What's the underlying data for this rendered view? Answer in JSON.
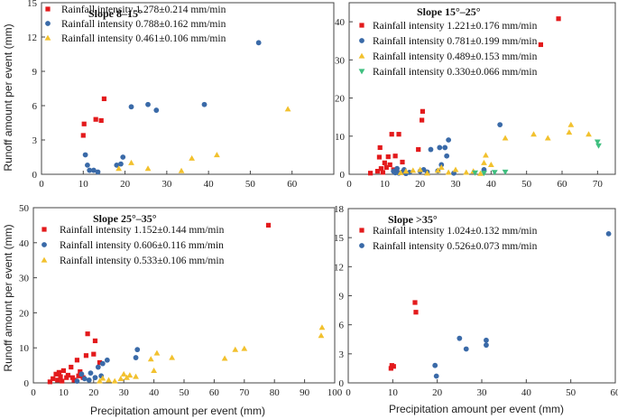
{
  "figure": {
    "ylabel": "Runoff amount per event (mm)",
    "xlabel": "Precipitation amount per event (mm)"
  },
  "colors": {
    "red": "#e31a1c",
    "blue": "#3a6aa8",
    "yellow": "#f2c12e",
    "green": "#3fbf7f"
  },
  "chart_data": [
    {
      "type": "scatter",
      "title": "Slope 8–15°",
      "xlabel": "",
      "ylabel": "Runoff amount per event (mm)",
      "xlim": [
        0,
        70
      ],
      "ylim": [
        0,
        15
      ],
      "xticks": [
        "0",
        "10",
        "20",
        "30",
        "40",
        "50",
        "60"
      ],
      "yticks": [
        "0",
        "3",
        "6",
        "9",
        "12",
        "15"
      ],
      "series": [
        {
          "name": "Rainfall intensity  1.278±0.214 mm/min",
          "color": "red",
          "marker": "square",
          "points": [
            [
              10,
              3.4
            ],
            [
              10.2,
              4.4
            ],
            [
              13,
              4.8
            ],
            [
              14.3,
              4.7
            ],
            [
              15,
              6.6
            ]
          ]
        },
        {
          "name": "Rainfall intensity  0.788±0.162 mm/min",
          "color": "blue",
          "marker": "circle",
          "points": [
            [
              10.5,
              1.7
            ],
            [
              11,
              0.8
            ],
            [
              11.5,
              0.35
            ],
            [
              12.5,
              0.35
            ],
            [
              13.5,
              0.2
            ],
            [
              18,
              0.8
            ],
            [
              19,
              0.9
            ],
            [
              19.5,
              1.5
            ],
            [
              21.5,
              5.9
            ],
            [
              25.5,
              6.1
            ],
            [
              27.5,
              5.6
            ],
            [
              39,
              6.1
            ],
            [
              52,
              11.5
            ]
          ]
        },
        {
          "name": "Rainfall intensity  0.461±0.106 mm/min",
          "color": "yellow",
          "marker": "triangle",
          "points": [
            [
              18.5,
              0.5
            ],
            [
              21.5,
              1.0
            ],
            [
              25.5,
              0.5
            ],
            [
              33.5,
              0.3
            ],
            [
              36,
              1.4
            ],
            [
              42,
              1.7
            ],
            [
              59,
              5.7
            ]
          ]
        }
      ]
    },
    {
      "type": "scatter",
      "title": "Slope 15°–25°",
      "xlabel": "",
      "ylabel": "",
      "xlim": [
        0,
        75
      ],
      "ylim": [
        0,
        45
      ],
      "xticks": [
        "0",
        "10",
        "20",
        "30",
        "40",
        "50",
        "60",
        "70"
      ],
      "yticks": [
        "0",
        "10",
        "20",
        "30",
        "40"
      ],
      "series": [
        {
          "name": "Rainfall intensity  1.221±0.176 mm/min",
          "color": "red",
          "marker": "square",
          "points": [
            [
              6,
              0.3
            ],
            [
              8,
              0.8
            ],
            [
              8.5,
              4.5
            ],
            [
              8.7,
              7
            ],
            [
              9,
              1.5
            ],
            [
              9.5,
              0.5
            ],
            [
              10,
              3
            ],
            [
              10.5,
              1.8
            ],
            [
              11,
              4.6
            ],
            [
              11.5,
              2.5
            ],
            [
              12,
              10.5
            ],
            [
              12.5,
              1.2
            ],
            [
              13,
              4.8
            ],
            [
              13.5,
              0.5
            ],
            [
              14,
              10.5
            ],
            [
              15,
              3.2
            ],
            [
              19.5,
              6.5
            ],
            [
              20.5,
              14.2
            ],
            [
              20.7,
              16.5
            ],
            [
              54,
              34
            ],
            [
              59,
              40.8
            ]
          ]
        },
        {
          "name": "Rainfall intensity  0.781±0.199 mm/min",
          "color": "blue",
          "marker": "circle",
          "points": [
            [
              12.5,
              0.8
            ],
            [
              13,
              0.4
            ],
            [
              13.5,
              1.5
            ],
            [
              14,
              0.3
            ],
            [
              15,
              0.6
            ],
            [
              15.5,
              1.2
            ],
            [
              16,
              0.2
            ],
            [
              17,
              0.5
            ],
            [
              20,
              0.8
            ],
            [
              21,
              1.2
            ],
            [
              22,
              0.6
            ],
            [
              23,
              6.5
            ],
            [
              25,
              0.9
            ],
            [
              25.5,
              7
            ],
            [
              26,
              2.5
            ],
            [
              27,
              7
            ],
            [
              27.5,
              4.8
            ],
            [
              28,
              9
            ],
            [
              29.5,
              0.3
            ],
            [
              38,
              1.2
            ],
            [
              42.5,
              13
            ]
          ]
        },
        {
          "name": "Rainfall intensity  0.489±0.153 mm/min",
          "color": "yellow",
          "marker": "triangle",
          "points": [
            [
              14.5,
              0.4
            ],
            [
              16,
              0.8
            ],
            [
              18,
              1.0
            ],
            [
              20,
              1.2
            ],
            [
              22,
              0.3
            ],
            [
              25,
              1.0
            ],
            [
              26,
              1.8
            ],
            [
              28,
              0.5
            ],
            [
              30,
              1.2
            ],
            [
              33,
              0.5
            ],
            [
              35,
              0.8
            ],
            [
              37,
              0.2
            ],
            [
              38,
              3
            ],
            [
              38.5,
              5
            ],
            [
              40,
              2.5
            ],
            [
              44,
              9.5
            ],
            [
              52,
              10.5
            ],
            [
              56,
              9.5
            ],
            [
              62,
              11
            ],
            [
              62.5,
              13
            ],
            [
              67.5,
              10.5
            ]
          ]
        },
        {
          "name": "Rainfall intensity  0.330±0.066 mm/min",
          "color": "green",
          "marker": "tri-down",
          "points": [
            [
              35.5,
              0.4
            ],
            [
              38,
              0.3
            ],
            [
              41,
              0.5
            ],
            [
              44,
              0.6
            ],
            [
              70,
              8.5
            ],
            [
              70.3,
              7.5
            ]
          ]
        }
      ]
    },
    {
      "type": "scatter",
      "title": "Slope 25°–35°",
      "xlabel": "Precipitation amount per event (mm)",
      "ylabel": "Runoff amount per event (mm)",
      "xlim": [
        0,
        100
      ],
      "ylim": [
        0,
        50
      ],
      "xticks": [
        "0",
        "10",
        "20",
        "30",
        "40",
        "50",
        "60",
        "70",
        "80",
        "90",
        "100"
      ],
      "yticks": [
        "0",
        "10",
        "20",
        "30",
        "40",
        "50"
      ],
      "series": [
        {
          "name": "Rainfall intensity  1.152±0.144 mm/min",
          "color": "red",
          "marker": "square",
          "points": [
            [
              5.5,
              0.3
            ],
            [
              6.5,
              1.2
            ],
            [
              7.5,
              2.5
            ],
            [
              8,
              0.8
            ],
            [
              8.5,
              3.0
            ],
            [
              9,
              1.8
            ],
            [
              9.5,
              0.5
            ],
            [
              10,
              3.5
            ],
            [
              11,
              1.5
            ],
            [
              11.5,
              2.2
            ],
            [
              12.5,
              4.5
            ],
            [
              13,
              1.5
            ],
            [
              13.5,
              0.8
            ],
            [
              14.5,
              6.5
            ],
            [
              15,
              2.0
            ],
            [
              15.5,
              3.2
            ],
            [
              16.5,
              1.5
            ],
            [
              17.5,
              7.8
            ],
            [
              18,
              14
            ],
            [
              20,
              8.2
            ],
            [
              20.5,
              12
            ],
            [
              22,
              5.8
            ],
            [
              78,
              45
            ]
          ]
        },
        {
          "name": "Rainfall intensity  0.606±0.116 mm/min",
          "color": "blue",
          "marker": "circle",
          "points": [
            [
              14.5,
              0.5
            ],
            [
              16,
              2.5
            ],
            [
              17,
              1.2
            ],
            [
              18.5,
              0.8
            ],
            [
              19,
              2.8
            ],
            [
              20.5,
              1.5
            ],
            [
              21.5,
              4.5
            ],
            [
              22.5,
              2.0
            ],
            [
              23,
              5.5
            ],
            [
              24.5,
              6.5
            ],
            [
              34,
              7.2
            ],
            [
              34.5,
              9.5
            ]
          ]
        },
        {
          "name": "Rainfall intensity  0.533±0.106 mm/min",
          "color": "yellow",
          "marker": "triangle",
          "points": [
            [
              22,
              0.5
            ],
            [
              23,
              1.3
            ],
            [
              25,
              0.8
            ],
            [
              27,
              0.5
            ],
            [
              29,
              1.2
            ],
            [
              30,
              2.5
            ],
            [
              31,
              1.5
            ],
            [
              32,
              2.2
            ],
            [
              34,
              1.8
            ],
            [
              39,
              6.8
            ],
            [
              40,
              3.5
            ],
            [
              41,
              8.5
            ],
            [
              46,
              7.2
            ],
            [
              63.5,
              7.0
            ],
            [
              67,
              9.5
            ],
            [
              70,
              9.8
            ],
            [
              95.5,
              13.5
            ],
            [
              95.8,
              15.8
            ]
          ]
        }
      ]
    },
    {
      "type": "scatter",
      "title": "Slope >35°",
      "xlabel": "Precipitation amount per event (mm)",
      "ylabel": "",
      "xlim": [
        0,
        60
      ],
      "ylim": [
        0,
        18
      ],
      "xticks": [
        "0",
        "10",
        "20",
        "30",
        "40",
        "50",
        "60"
      ],
      "yticks": [
        "0",
        "3",
        "6",
        "9",
        "12",
        "15",
        "18"
      ],
      "series": [
        {
          "name": "Rainfall intensity  1.024±0.132 mm/min",
          "color": "red",
          "marker": "square",
          "points": [
            [
              9.6,
              1.5
            ],
            [
              9.8,
              1.8
            ],
            [
              10.2,
              1.7
            ],
            [
              15,
              8.3
            ],
            [
              15.2,
              7.3
            ]
          ]
        },
        {
          "name": "Rainfall intensity  0.526±0.073 mm/min",
          "color": "blue",
          "marker": "circle",
          "points": [
            [
              19.5,
              1.8
            ],
            [
              19.8,
              0.7
            ],
            [
              25,
              4.6
            ],
            [
              26.5,
              3.5
            ],
            [
              31,
              4.4
            ],
            [
              31,
              3.9
            ],
            [
              58.5,
              15.4
            ]
          ]
        }
      ]
    }
  ]
}
